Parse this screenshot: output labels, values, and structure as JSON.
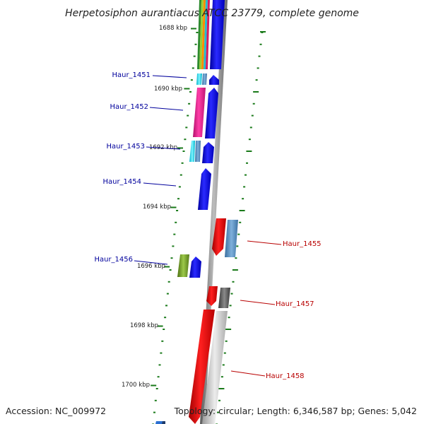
{
  "title": "Herpetosiphon aurantiacus ATCC 23779, complete genome",
  "footer": {
    "accession": "Accession: NC_009972",
    "topology": "Topology: circular; Length: 6,346,587 bp; Genes: 5,042"
  },
  "ticks": [
    "1688 kbp",
    "1690 kbp",
    "1692 kbp",
    "1694 kbp",
    "1696 kbp",
    "1698 kbp",
    "1700 kbp"
  ],
  "genes": {
    "haur_1451": "Haur_1451",
    "haur_1452": "Haur_1452",
    "haur_1453": "Haur_1453",
    "haur_1454": "Haur_1454",
    "haur_1455": "Haur_1455",
    "haur_1456": "Haur_1456",
    "haur_1457": "Haur_1457",
    "haur_1458": "Haur_1458"
  },
  "colors": {
    "forward_strand": "#0000e6",
    "reverse_strand": "#e60000",
    "forward_label": "#00009c",
    "reverse_label": "#b80000",
    "tick_marks": "#1a7a1a",
    "backbone": "#8c8c8c"
  }
}
